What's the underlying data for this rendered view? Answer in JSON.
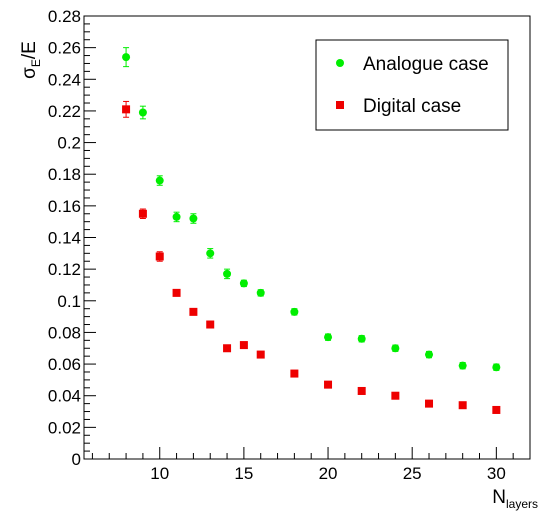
{
  "chart_data": {
    "type": "scatter",
    "xlabel_main": "N",
    "xlabel_sub": "layers",
    "ylabel_main": "σ",
    "ylabel_sub": "E",
    "ylabel_tail": "/E",
    "xlim": [
      5.5,
      32
    ],
    "ylim": [
      0,
      0.28
    ],
    "x_ticks": [
      "10",
      "15",
      "20",
      "25",
      "30"
    ],
    "y_ticks": [
      "0",
      "0.02",
      "0.04",
      "0.06",
      "0.08",
      "0.1",
      "0.12",
      "0.14",
      "0.16",
      "0.18",
      "0.2",
      "0.22",
      "0.24",
      "0.26",
      "0.28"
    ],
    "legend_position": "top-right",
    "series": [
      {
        "name": "Analogue case",
        "color": "#00ee00",
        "marker": "circle",
        "x": [
          8,
          9,
          10,
          11,
          12,
          13,
          14,
          15,
          16,
          18,
          20,
          22,
          24,
          26,
          28,
          30
        ],
        "y": [
          0.254,
          0.219,
          0.176,
          0.153,
          0.152,
          0.13,
          0.117,
          0.111,
          0.105,
          0.093,
          0.077,
          0.076,
          0.07,
          0.066,
          0.059,
          0.058
        ],
        "yerr": [
          0.006,
          0.004,
          0.003,
          0.003,
          0.003,
          0.003,
          0.003,
          0.002,
          0.002,
          0.002,
          0.002,
          0.002,
          0.002,
          0.002,
          0.002,
          0.002
        ]
      },
      {
        "name": "Digital case",
        "color": "#ee0000",
        "marker": "square",
        "x": [
          8,
          9,
          10,
          11,
          12,
          13,
          14,
          15,
          16,
          18,
          20,
          22,
          24,
          26,
          28,
          30
        ],
        "y": [
          0.221,
          0.155,
          0.128,
          0.105,
          0.093,
          0.085,
          0.07,
          0.072,
          0.066,
          0.054,
          0.047,
          0.043,
          0.04,
          0.035,
          0.034,
          0.031
        ],
        "yerr": [
          0.005,
          0.003,
          0.003,
          0.002,
          0.002,
          0.002,
          0.002,
          0.002,
          0.002,
          0.002,
          0.002,
          0.002,
          0.002,
          0.002,
          0.002,
          0.002
        ]
      }
    ]
  }
}
